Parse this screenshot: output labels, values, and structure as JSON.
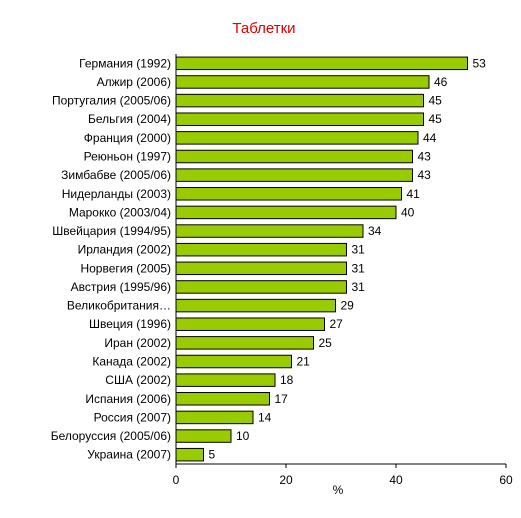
{
  "chart_data": {
    "type": "bar",
    "orientation": "horizontal",
    "title": "Таблетки",
    "title_color": "#e00000",
    "xlabel": "%",
    "xlim": [
      0,
      60
    ],
    "xticks": [
      "0",
      "20",
      "40",
      "60"
    ],
    "bar_color": "#99cc00",
    "grid": false,
    "categories": [
      "Германия (1992)",
      "Алжир (2006)",
      "Португалия (2005/06)",
      "Бельгия (2004)",
      "Франция (2000)",
      "Реюньон (1997)",
      "Зимбабве (2005/06)",
      "Нидерланды (2003)",
      "Марокко (2003/04)",
      "Швейцария (1994/95)",
      "Ирландия (2002)",
      "Норвегия (2005)",
      "Австрия (1995/96)",
      "Великобритания…",
      "Швеция (1996)",
      "Иран (2002)",
      "Канада (2002)",
      "США (2002)",
      "Испания (2006)",
      "Россия (2007)",
      "Белоруссия (2005/06)",
      "Украина (2007)"
    ],
    "values": [
      53,
      46,
      45,
      45,
      44,
      43,
      43,
      41,
      40,
      34,
      31,
      31,
      31,
      29,
      27,
      25,
      21,
      18,
      17,
      14,
      10,
      5
    ]
  }
}
